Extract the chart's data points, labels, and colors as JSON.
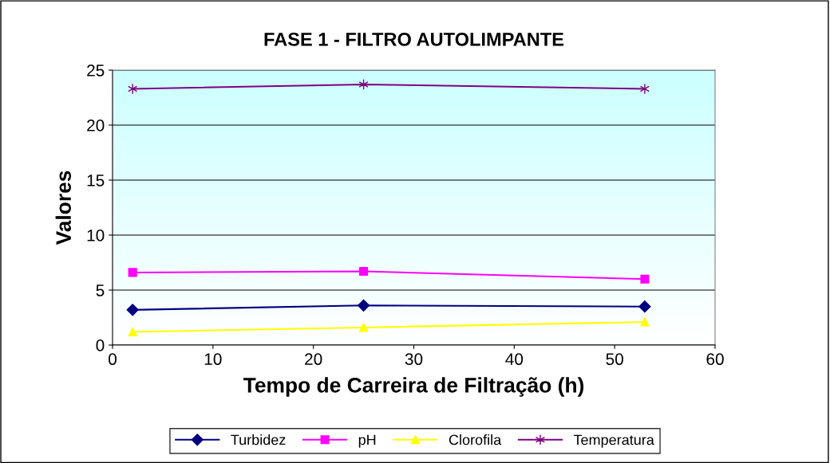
{
  "chart_data": {
    "type": "line",
    "title": "FASE 1 - FILTRO AUTOLIMPANTE",
    "xlabel": "Tempo de Carreira de Filtração (h)",
    "ylabel": "Valores",
    "x": [
      2,
      25,
      53
    ],
    "series": [
      {
        "name": "Turbidez",
        "color": "#000080",
        "marker": "diamond",
        "values": [
          3.2,
          3.6,
          3.5
        ]
      },
      {
        "name": "pH",
        "color": "#ff00ff",
        "marker": "square",
        "values": [
          6.6,
          6.7,
          6.0
        ]
      },
      {
        "name": "Clorofila",
        "color": "#ffff00",
        "marker": "triangle",
        "values": [
          1.2,
          1.6,
          2.1
        ]
      },
      {
        "name": "Temperatura",
        "color": "#800080",
        "marker": "cross",
        "values": [
          23.3,
          23.7,
          23.3
        ]
      }
    ],
    "xlim": [
      0,
      60
    ],
    "xticks": [
      0,
      10,
      20,
      30,
      40,
      50,
      60
    ],
    "ylim": [
      0,
      25
    ],
    "yticks": [
      0,
      5,
      10,
      15,
      20,
      25
    ],
    "grid": "y",
    "legend": "bottom",
    "line_style": "solid"
  }
}
